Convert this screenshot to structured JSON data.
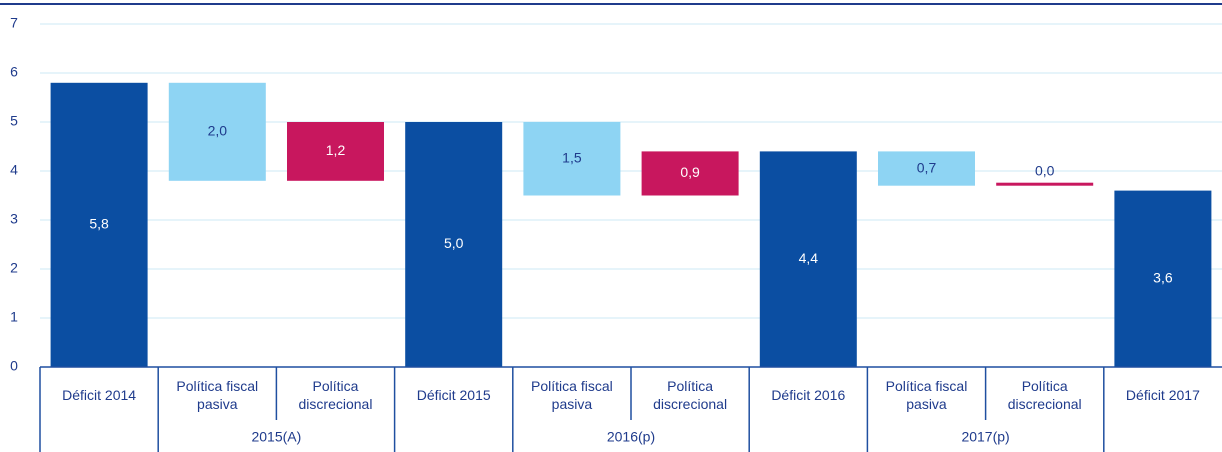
{
  "chart_data": {
    "type": "waterfall",
    "categories": [
      "Déficit 2014",
      "Política fiscal pasiva",
      "Política discrecional",
      "Déficit 2015",
      "Política fiscal pasiva",
      "Política discrecional",
      "Déficit 2016",
      "Política fiscal pasiva",
      "Política discrecional",
      "Déficit 2017"
    ],
    "measure": [
      "total",
      "decrease",
      "increase",
      "total",
      "decrease",
      "increase",
      "total",
      "decrease",
      "increase",
      "total"
    ],
    "values": [
      5.8,
      2.0,
      1.2,
      5.0,
      1.5,
      0.9,
      4.4,
      0.7,
      0.0,
      3.6
    ],
    "value_labels": [
      "5,8",
      "2,0",
      "1,2",
      "5,0",
      "1,5",
      "0,9",
      "4,4",
      "0,7",
      "0,0",
      "3,6"
    ],
    "groups": [
      "2015(A)",
      "2016(p)",
      "2017(p)"
    ],
    "colors": {
      "total": "#0b4ea2",
      "decrease": "#8ed4f3",
      "increase": "#c8175e"
    },
    "ylim": [
      0,
      7
    ],
    "yticks": [
      0,
      1,
      2,
      3,
      4,
      5,
      6,
      7
    ],
    "grid": true
  }
}
